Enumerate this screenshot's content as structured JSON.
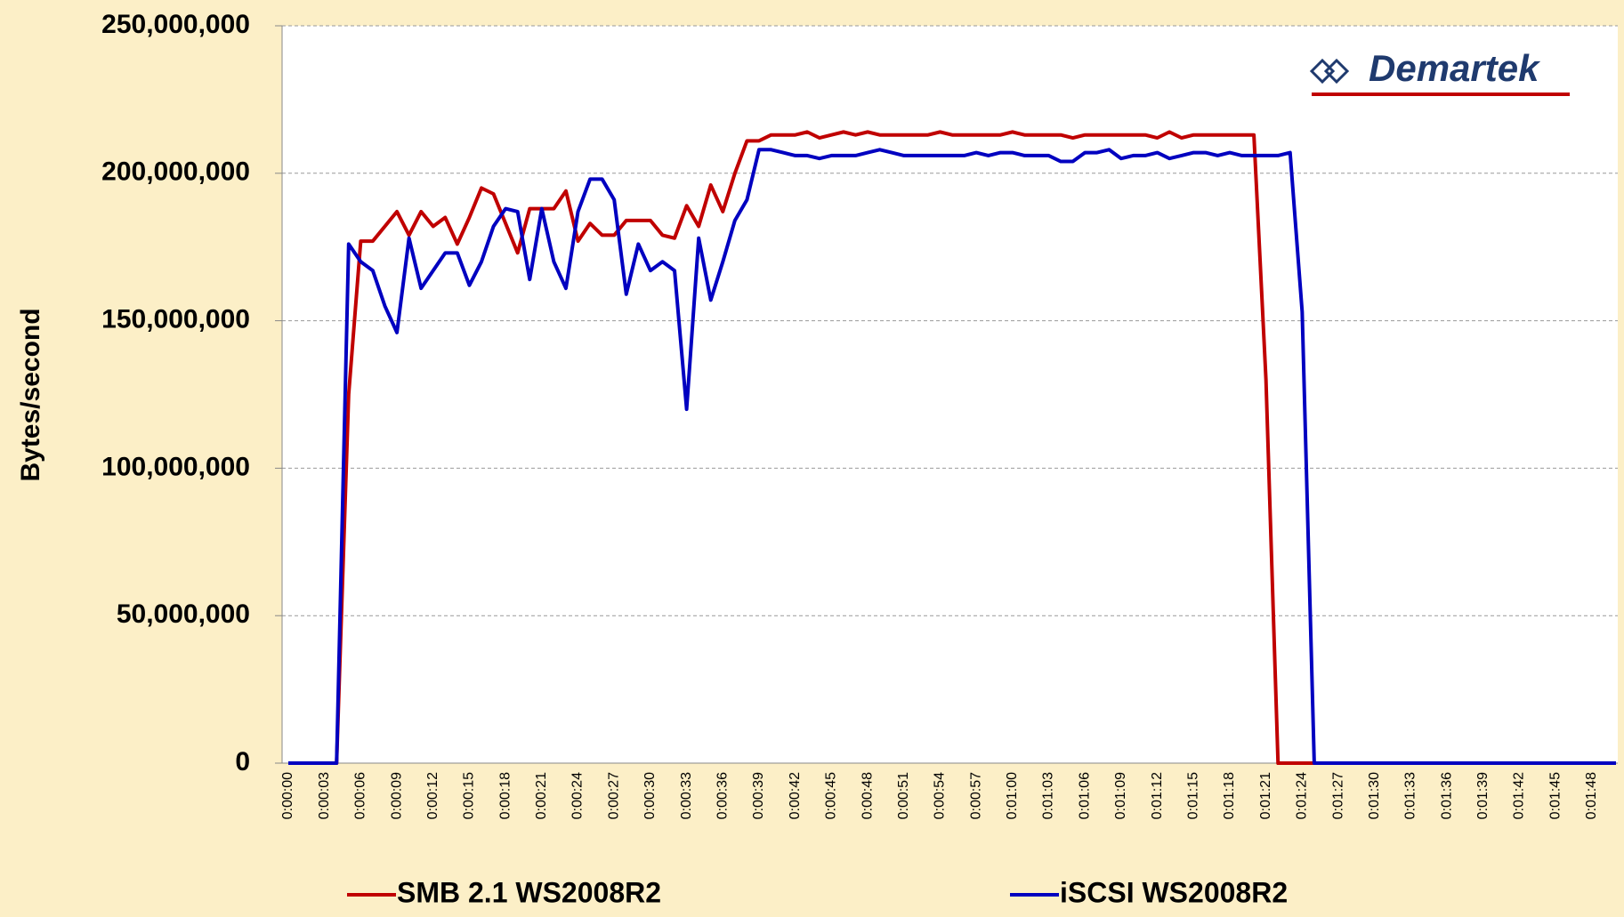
{
  "chart_data": {
    "type": "line",
    "ylabel": "Bytes/second",
    "logo": "Demartek",
    "categories": [
      "0:00:00",
      null,
      null,
      "0:00:03",
      null,
      null,
      "0:00:06",
      null,
      null,
      "0:00:09",
      null,
      null,
      "0:00:12",
      null,
      null,
      "0:00:15",
      null,
      null,
      "0:00:18",
      null,
      null,
      "0:00:21",
      null,
      null,
      "0:00:24",
      null,
      null,
      "0:00:27",
      null,
      null,
      "0:00:30",
      null,
      null,
      "0:00:33",
      null,
      null,
      "0:00:36",
      null,
      null,
      "0:00:39",
      null,
      null,
      "0:00:42",
      null,
      null,
      "0:00:45",
      null,
      null,
      "0:00:48",
      null,
      null,
      "0:00:51",
      null,
      null,
      "0:00:54",
      null,
      null,
      "0:00:57",
      null,
      null,
      "0:01:00",
      null,
      null,
      "0:01:03",
      null,
      null,
      "0:01:06",
      null,
      null,
      "0:01:09",
      null,
      null,
      "0:01:12",
      null,
      null,
      "0:01:15",
      null,
      null,
      "0:01:18",
      null,
      null,
      "0:01:21",
      null,
      null,
      "0:01:24",
      null,
      null,
      "0:01:27",
      null,
      null,
      "0:01:30",
      null,
      null,
      "0:01:33",
      null,
      null,
      "0:01:36",
      null,
      null,
      "0:01:39",
      null,
      null,
      "0:01:42",
      null,
      null,
      "0:01:45",
      null,
      null,
      "0:01:48",
      null,
      null
    ],
    "series": [
      {
        "name": "SMB 2.1 WS2008R2",
        "color": "#c00000",
        "values": [
          0,
          0,
          0,
          0,
          0,
          125000000,
          177000000,
          177000000,
          182000000,
          187000000,
          179000000,
          187000000,
          182000000,
          185000000,
          176000000,
          185000000,
          195000000,
          193000000,
          183000000,
          173000000,
          188000000,
          188000000,
          188000000,
          194000000,
          177000000,
          183000000,
          179000000,
          179000000,
          184000000,
          184000000,
          184000000,
          179000000,
          178000000,
          189000000,
          182000000,
          196000000,
          187000000,
          200000000,
          211000000,
          211000000,
          213000000,
          213000000,
          213000000,
          214000000,
          212000000,
          213000000,
          214000000,
          213000000,
          214000000,
          213000000,
          213000000,
          213000000,
          213000000,
          213000000,
          214000000,
          213000000,
          213000000,
          213000000,
          213000000,
          213000000,
          214000000,
          213000000,
          213000000,
          213000000,
          213000000,
          212000000,
          213000000,
          213000000,
          213000000,
          213000000,
          213000000,
          213000000,
          212000000,
          214000000,
          212000000,
          213000000,
          213000000,
          213000000,
          213000000,
          213000000,
          213000000,
          130000000,
          0,
          0,
          0,
          0,
          0,
          0,
          0,
          0,
          0,
          0,
          0,
          0,
          0,
          0,
          0,
          0,
          0,
          0,
          0,
          0,
          0,
          0,
          0,
          0,
          0,
          0,
          0,
          0,
          0
        ]
      },
      {
        "name": "iSCSI WS2008R2",
        "color": "#0000c0",
        "values": [
          0,
          0,
          0,
          0,
          0,
          176000000,
          170000000,
          167000000,
          155000000,
          146000000,
          178000000,
          161000000,
          167000000,
          173000000,
          173000000,
          162000000,
          170000000,
          182000000,
          188000000,
          187000000,
          164000000,
          188000000,
          170000000,
          161000000,
          187000000,
          198000000,
          198000000,
          191000000,
          159000000,
          176000000,
          167000000,
          170000000,
          167000000,
          120000000,
          178000000,
          157000000,
          170000000,
          184000000,
          191000000,
          208000000,
          208000000,
          207000000,
          206000000,
          206000000,
          205000000,
          206000000,
          206000000,
          206000000,
          207000000,
          208000000,
          207000000,
          206000000,
          206000000,
          206000000,
          206000000,
          206000000,
          206000000,
          207000000,
          206000000,
          207000000,
          207000000,
          206000000,
          206000000,
          206000000,
          204000000,
          204000000,
          207000000,
          207000000,
          208000000,
          205000000,
          206000000,
          206000000,
          207000000,
          205000000,
          206000000,
          207000000,
          207000000,
          206000000,
          207000000,
          206000000,
          206000000,
          206000000,
          206000000,
          207000000,
          153000000,
          0,
          0,
          0,
          0,
          0,
          0,
          0,
          0,
          0,
          0,
          0,
          0,
          0,
          0,
          0,
          0,
          0,
          0,
          0,
          0,
          0,
          0,
          0,
          0,
          0,
          0
        ]
      }
    ],
    "ylim": [
      0,
      250000000
    ],
    "yticks": [
      0,
      {
        "value": 50000000,
        "label": "50,000,000"
      },
      {
        "value": 100000000,
        "label": "100,000,000"
      },
      {
        "value": 150000000,
        "label": "150,000,000"
      },
      {
        "value": 200000000,
        "label": "200,000,000"
      },
      {
        "value": 250000000,
        "label": "250,000,000"
      }
    ],
    "grid": true
  }
}
